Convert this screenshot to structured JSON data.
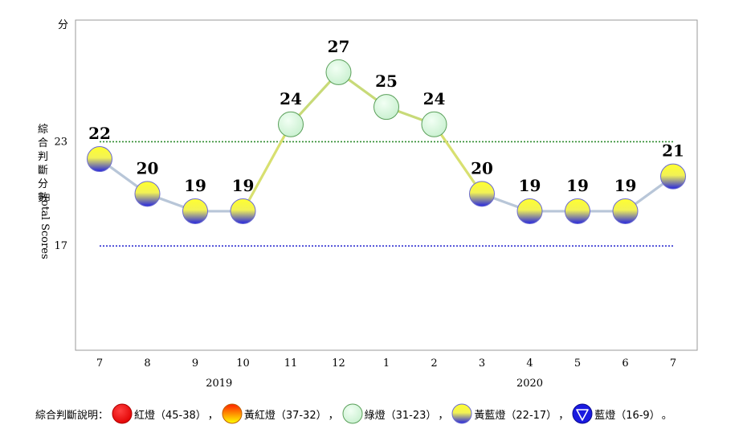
{
  "chart_data": {
    "type": "line",
    "y_unit": "分",
    "ylabel_zh": "綜合判斷分數",
    "ylabel_en": "Total Scores",
    "categories": [
      "7",
      "8",
      "9",
      "10",
      "11",
      "12",
      "1",
      "2",
      "3",
      "4",
      "5",
      "6",
      "7"
    ],
    "year_labels": [
      {
        "label": "2019",
        "from_index": 0,
        "to_index": 5
      },
      {
        "label": "2020",
        "from_index": 6,
        "to_index": 12
      }
    ],
    "values": [
      22,
      20,
      19,
      19,
      24,
      27,
      25,
      24,
      20,
      19,
      19,
      19,
      21
    ],
    "signals": [
      "yellow-blue",
      "yellow-blue",
      "yellow-blue",
      "yellow-blue",
      "green",
      "green",
      "green",
      "green",
      "yellow-blue",
      "yellow-blue",
      "yellow-blue",
      "yellow-blue",
      "yellow-blue"
    ],
    "ylim": [
      11,
      30
    ],
    "thresholds": [
      {
        "value": 23,
        "label": "23",
        "color": "#2e8b2e"
      },
      {
        "value": 17,
        "label": "17",
        "color": "#3030d0"
      }
    ],
    "grid": false
  },
  "legend": {
    "title": "綜合判斷說明：",
    "separator": "，",
    "end": "。",
    "items": [
      {
        "signal": "red",
        "label": "紅燈（45-38）"
      },
      {
        "signal": "yellow-red",
        "label": "黃紅燈（37-32）"
      },
      {
        "signal": "green",
        "label": "綠燈（31-23）"
      },
      {
        "signal": "yellow-blue",
        "label": "黃藍燈（22-17）"
      },
      {
        "signal": "blue",
        "label": "藍燈（16-9）"
      }
    ]
  },
  "colors": {
    "segment_low": "#b8c6d8",
    "segment_high": "#c8da78",
    "segment_mixed": "#d8e070",
    "green_light_fill": "#d8f7dc",
    "green_light_stroke": "#5aa05a",
    "yellow": "#ffff00",
    "blue": "#1a1ae0",
    "red": "#ff0000"
  }
}
